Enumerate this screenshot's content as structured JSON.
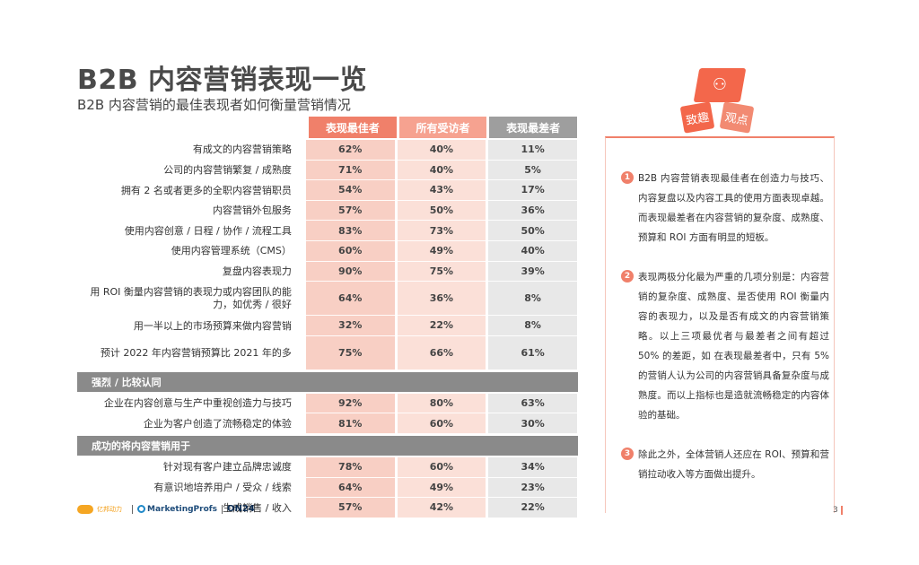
{
  "title": "B2B 内容营销表现一览",
  "subtitle": "B2B 内容营销的最佳表现者如何衡量营销情况",
  "table": {
    "headers": [
      "表现最佳者",
      "所有受访者",
      "表现最差者"
    ],
    "rows": [
      {
        "label": "有成文的内容营销策略",
        "best": "62%",
        "all": "40%",
        "worst": "11%"
      },
      {
        "label": "公司的内容营销繁复 / 成熟度",
        "best": "71%",
        "all": "40%",
        "worst": "5%"
      },
      {
        "label": "拥有 2 名或者更多的全职内容营销职员",
        "best": "54%",
        "all": "43%",
        "worst": "17%"
      },
      {
        "label": "内容营销外包服务",
        "best": "57%",
        "all": "50%",
        "worst": "36%"
      },
      {
        "label": "使用内容创意 / 日程 / 协作 / 流程工具",
        "best": "83%",
        "all": "73%",
        "worst": "50%"
      },
      {
        "label": "使用内容管理系统（CMS）",
        "best": "60%",
        "all": "49%",
        "worst": "40%"
      },
      {
        "label": "复盘内容表现力",
        "best": "90%",
        "all": "75%",
        "worst": "39%"
      },
      {
        "label": "用 ROI 衡量内容营销的表现力或内容团队的能力，如优秀 / 很好",
        "best": "64%",
        "all": "36%",
        "worst": "8%"
      },
      {
        "label": "用一半以上的市场预算来做内容营销",
        "best": "32%",
        "all": "22%",
        "worst": "8%"
      },
      {
        "label": "预计 2022 年内容营销预算比 2021 年的多",
        "best": "75%",
        "all": "66%",
        "worst": "61%"
      }
    ],
    "section1": "强烈 / 比较认同",
    "rows_s1": [
      {
        "label": "企业在内容创意与生产中重视创造力与技巧",
        "best": "92%",
        "all": "80%",
        "worst": "63%"
      },
      {
        "label": "企业为客户创造了流畅稳定的体验",
        "best": "81%",
        "all": "60%",
        "worst": "30%"
      }
    ],
    "section2": "成功的将内容营销用于",
    "rows_s2": [
      {
        "label": "针对现有客户建立品牌忠诚度",
        "best": "78%",
        "all": "60%",
        "worst": "34%"
      },
      {
        "label": "有意识地培养用户 / 受众 / 线索",
        "best": "64%",
        "all": "49%",
        "worst": "23%"
      },
      {
        "label": "生成销售 / 收入",
        "best": "57%",
        "all": "42%",
        "worst": "22%"
      }
    ]
  },
  "footer": {
    "logo1": "亿邦动力",
    "marketingprofs": "MarketingProfs",
    "on24": "ON24"
  },
  "badge": {
    "left": "致趣",
    "right": "观点",
    "icon": "share-icon"
  },
  "points": [
    {
      "num": "1",
      "text": "B2B 内容营销表现最佳者在创造力与技巧、内容复盘以及内容工具的使用方面表现卓越。而表现最差者在内容营销的复杂度、成熟度、预算和 ROI 方面有明显的短板。"
    },
    {
      "num": "2",
      "text": "表现两极分化最为严重的几项分别是：内容营销的复杂度、成熟度、是否使用 ROI 衡量内容的表现力，以及是否有成文的内容营销策略。以上三项最优者与最差者之间有超过 50% 的差距，如 在表现最差者中，只有 5% 的营销人认为公司的内容营销具备复杂度与成熟度。而以上指标也是造就流畅稳定的内容体验的基础。"
    },
    {
      "num": "3",
      "text": "除此之外，全体营销人还应在 ROI、预算和营销拉动收入等方面做出提升。"
    }
  ],
  "page_number": "3",
  "colors": {
    "accent": "#f0806a",
    "best": "#f8cfc4",
    "all": "#fbe0d8",
    "worst": "#e8e8e8",
    "section": "#8a8a8a"
  }
}
